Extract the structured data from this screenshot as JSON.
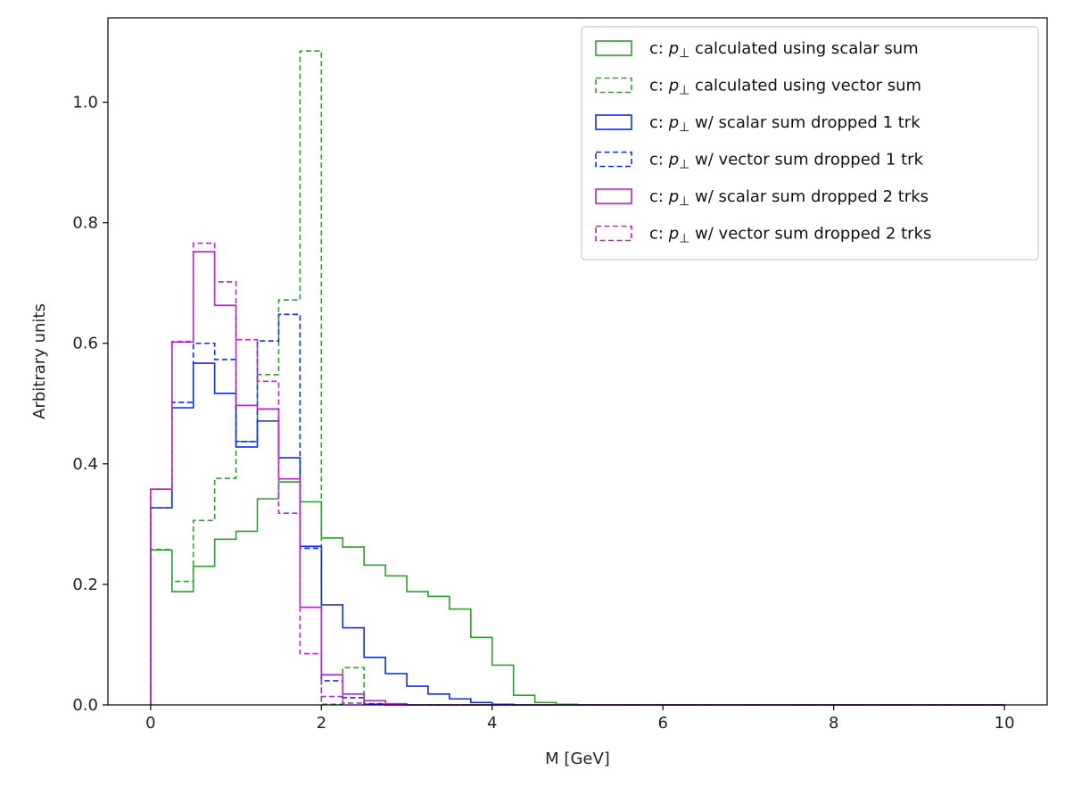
{
  "chart_data": {
    "type": "histogram",
    "xlabel": "M [GeV]",
    "ylabel": "Arbitrary units",
    "xlim": [
      -0.5,
      10.5
    ],
    "ylim": [
      0.0,
      1.14
    ],
    "xticks": [
      0,
      2,
      4,
      6,
      8,
      10
    ],
    "xtick_labels": [
      "0",
      "2",
      "4",
      "6",
      "8",
      "10"
    ],
    "yticks": [
      0.0,
      0.2,
      0.4,
      0.6,
      0.8,
      1.0
    ],
    "ytick_labels": [
      "0.0",
      "0.2",
      "0.4",
      "0.6",
      "0.8",
      "1.0"
    ],
    "grid": false,
    "legend_position": "top-right",
    "bin_edges": [
      0.0,
      0.25,
      0.5,
      0.75,
      1.0,
      1.25,
      1.5,
      1.75,
      2.0,
      2.25,
      2.5,
      2.75,
      3.0,
      3.25,
      3.5,
      3.75,
      4.0,
      4.25,
      4.5,
      4.75,
      5.0,
      10.0
    ],
    "series": [
      {
        "name": "c: p⊥ calculated using scalar sum",
        "label_prefix": "c: ",
        "label_symbol": "p",
        "label_sub": "⊥",
        "label_suffix": " calculated using scalar sum",
        "color": "#2ca02c",
        "dash": "solid",
        "values": [
          0.257,
          0.188,
          0.23,
          0.275,
          0.288,
          0.342,
          0.37,
          0.337,
          0.277,
          0.262,
          0.232,
          0.214,
          0.188,
          0.18,
          0.159,
          0.112,
          0.066,
          0.016,
          0.004,
          0.001,
          0.0
        ]
      },
      {
        "name": "c: p⊥ calculated using vector sum",
        "label_prefix": "c: ",
        "label_symbol": "p",
        "label_sub": "⊥",
        "label_suffix": " calculated using vector sum",
        "color": "#2ca02c",
        "dash": "dashed",
        "values": [
          0.258,
          0.205,
          0.306,
          0.376,
          0.437,
          0.548,
          0.672,
          1.085,
          0.001,
          0.062,
          0.002,
          0.001,
          0.0,
          0.0,
          0.0,
          0.0,
          0.0,
          0.0,
          0.0,
          0.0,
          0.0
        ]
      },
      {
        "name": "c: p⊥ w/ scalar sum dropped 1 trk",
        "label_prefix": "c: ",
        "label_symbol": "p",
        "label_sub": "⊥",
        "label_suffix": " w/ scalar sum dropped 1 trk",
        "color": "#0a2bff",
        "dash": "solid",
        "values": [
          0.327,
          0.493,
          0.567,
          0.517,
          0.428,
          0.471,
          0.41,
          0.263,
          0.166,
          0.128,
          0.079,
          0.052,
          0.031,
          0.018,
          0.01,
          0.004,
          0.001,
          0.0,
          0.0,
          0.0,
          0.0
        ]
      },
      {
        "name": "c: p⊥ w/ vector sum dropped 1 trk",
        "label_prefix": "c: ",
        "label_symbol": "p",
        "label_sub": "⊥",
        "label_suffix": " w/ vector sum dropped 1 trk",
        "color": "#0a2bff",
        "dash": "dashed",
        "values": [
          0.327,
          0.502,
          0.6,
          0.573,
          0.437,
          0.604,
          0.648,
          0.26,
          0.04,
          0.012,
          0.002,
          0.0,
          0.0,
          0.0,
          0.0,
          0.0,
          0.0,
          0.0,
          0.0,
          0.0,
          0.0
        ]
      },
      {
        "name": "c: p⊥ w/ scalar sum dropped 2 trks",
        "label_prefix": "c: ",
        "label_symbol": "p",
        "label_sub": "⊥",
        "label_suffix": " w/ scalar sum dropped 2 trks",
        "color": "#bf1fd6",
        "dash": "solid",
        "values": [
          0.358,
          0.602,
          0.752,
          0.663,
          0.497,
          0.491,
          0.375,
          0.162,
          0.05,
          0.018,
          0.007,
          0.002,
          0.0,
          0.0,
          0.0,
          0.0,
          0.0,
          0.0,
          0.0,
          0.0,
          0.0
        ]
      },
      {
        "name": "c: p⊥ w/ vector sum dropped 2 trks",
        "label_prefix": "c: ",
        "label_symbol": "p",
        "label_sub": "⊥",
        "label_suffix": " w/ vector sum dropped 2 trks",
        "color": "#bf1fd6",
        "dash": "dashed",
        "values": [
          0.358,
          0.603,
          0.766,
          0.702,
          0.606,
          0.537,
          0.318,
          0.085,
          0.014,
          0.003,
          0.001,
          0.0,
          0.0,
          0.0,
          0.0,
          0.0,
          0.0,
          0.0,
          0.0,
          0.0,
          0.0
        ]
      }
    ]
  }
}
